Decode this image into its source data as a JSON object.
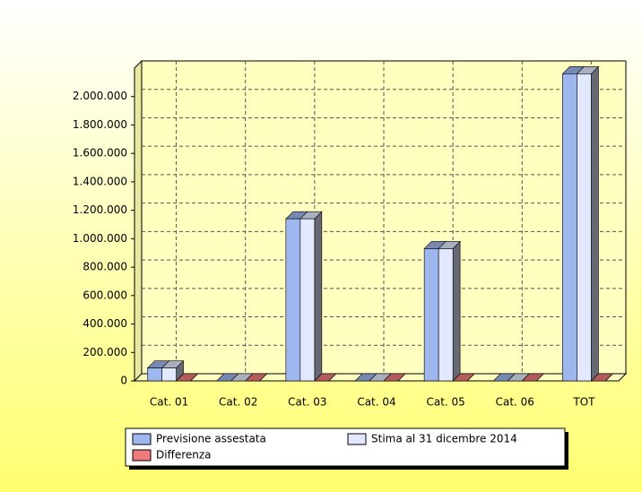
{
  "chart_data": {
    "type": "bar3d",
    "categories": [
      "Cat. 01",
      "Cat. 02",
      "Cat. 03",
      "Cat. 04",
      "Cat. 05",
      "Cat. 06",
      "TOT"
    ],
    "series": [
      {
        "name": "Previsione assestata",
        "color": "#9fb7ef",
        "values": [
          90000,
          0,
          1140000,
          0,
          930000,
          0,
          2160000
        ]
      },
      {
        "name": "Stima al 31 dicembre 2014",
        "color": "#e2e9ff",
        "values": [
          90000,
          0,
          1140000,
          0,
          930000,
          0,
          2160000
        ]
      },
      {
        "name": "Differenza",
        "color": "#ee7a7a",
        "values": [
          0,
          0,
          0,
          0,
          0,
          0,
          0
        ]
      }
    ],
    "ylim": [
      0,
      2200000
    ],
    "yticks": [
      0,
      {
        "value": 200000,
        "label": "200.000"
      },
      {
        "value": 400000,
        "label": "400.000"
      },
      {
        "value": 600000,
        "label": "600.000"
      },
      {
        "value": 800000,
        "label": "800.000"
      },
      {
        "value": 1000000,
        "label": "1.000.000"
      },
      {
        "value": 1200000,
        "label": "1.200.000"
      },
      {
        "value": 1400000,
        "label": "1.400.000"
      },
      {
        "value": 1600000,
        "label": "1.600.000"
      },
      {
        "value": 1800000,
        "label": "1.800.000"
      },
      {
        "value": 2000000,
        "label": "2.000.000"
      }
    ],
    "grid": true,
    "legend": "bottom"
  }
}
